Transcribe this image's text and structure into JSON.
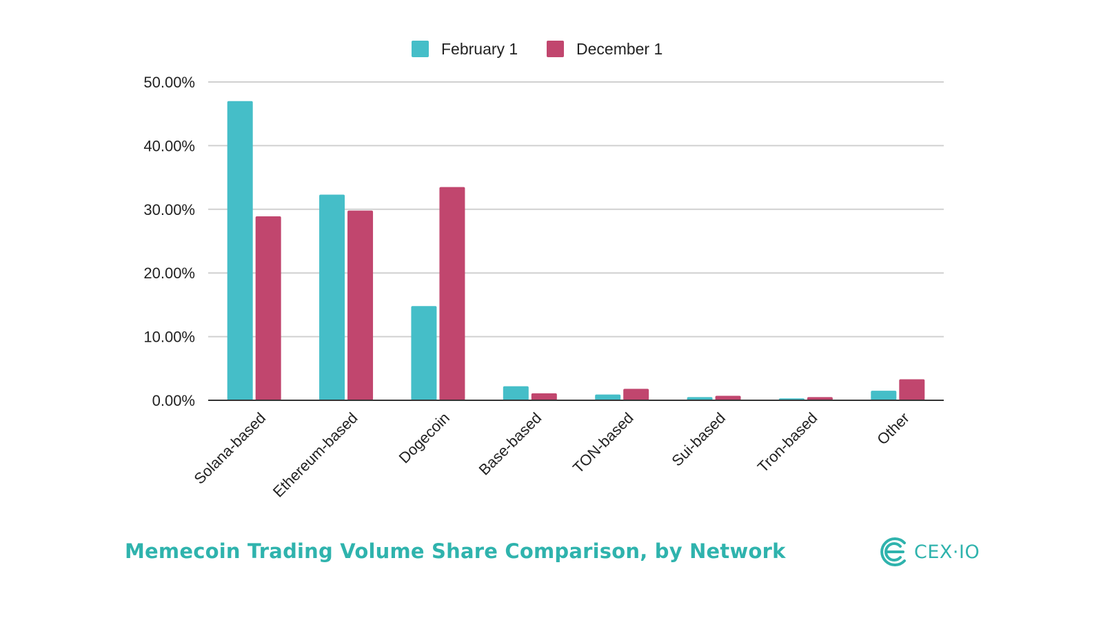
{
  "colors": {
    "series_1": "#45bec8",
    "series_2": "#c1466e",
    "brand": "#2fb3ad",
    "grid": "#d0d0d0",
    "axis": "#333333"
  },
  "footer": {
    "title": "Memecoin Trading Volume Share Comparison, by Network"
  },
  "logo": {
    "text": "CEX·IO",
    "icon": "cex-logo-icon"
  },
  "chart_data": {
    "type": "bar",
    "title": "",
    "xlabel": "",
    "ylabel": "",
    "legend_position": "top-center",
    "grid": true,
    "ylim": [
      0,
      50
    ],
    "y_ticks": [
      "0.00%",
      "10.00%",
      "20.00%",
      "30.00%",
      "40.00%",
      "50.00%"
    ],
    "categories": [
      "Solana-based",
      "Ethereum-based",
      "Dogecoin",
      "Base-based",
      "TON-based",
      "Sui-based",
      "Tron-based",
      "Other"
    ],
    "series": [
      {
        "name": "February 1",
        "values": [
          47.0,
          32.3,
          14.8,
          2.2,
          0.9,
          0.5,
          0.3,
          1.5
        ]
      },
      {
        "name": "December 1",
        "values": [
          28.9,
          29.8,
          33.5,
          1.1,
          1.8,
          0.7,
          0.5,
          3.3
        ]
      }
    ]
  }
}
